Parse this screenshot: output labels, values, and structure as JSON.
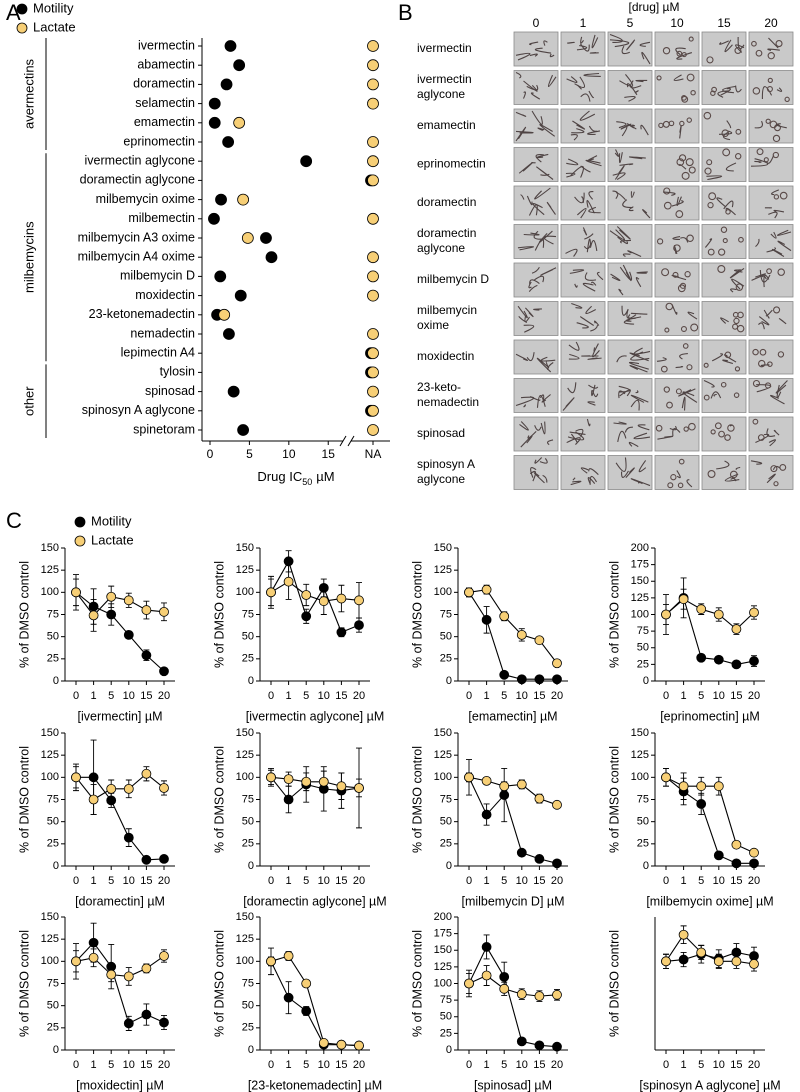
{
  "panel_labels": [
    "A",
    "B",
    "C"
  ],
  "image_grid": {
    "title": "[drug] µM",
    "concentrations": [
      "0",
      "1",
      "5",
      "10",
      "15",
      "20"
    ],
    "drugs": [
      [
        "ivermectin"
      ],
      [
        "ivermectin",
        "aglycone"
      ],
      [
        "emamectin"
      ],
      [
        "eprinomectin"
      ],
      [
        "doramectin"
      ],
      [
        "doramectin",
        "aglycone"
      ],
      [
        "milbemycin D"
      ],
      [
        "milbemycin",
        "oxime"
      ],
      [
        "moxidectin"
      ],
      [
        "23-keto-",
        "nemadectin"
      ],
      [
        "spinosad"
      ],
      [
        "spinosyn A",
        "aglycone"
      ]
    ]
  },
  "chart_data": [
    {
      "type": "dot",
      "categories": [
        "ivermectin",
        "abamectin",
        "doramectin",
        "selamectin",
        "emamectin",
        "eprinomectin",
        "ivermectin aglycone",
        "doramectin aglycone",
        "milbemycin oxime",
        "milbemectin",
        "milbemycin A3 oxime",
        "milbemycin A4 oxime",
        "milbemycin D",
        "moxidectin",
        "23-ketonemadectin",
        "nemadectin",
        "lepimectin A4",
        "tylosin",
        "spinosad",
        "spinosyn A aglycone",
        "spinetoram"
      ],
      "groups": [
        {
          "label": "avermectins",
          "from": 0,
          "to": 5
        },
        {
          "label": "milbemycins",
          "from": 6,
          "to": 16
        },
        {
          "label": "other",
          "from": 17,
          "to": 20
        }
      ],
      "xlabel": [
        "Drug IC",
        "50",
        "µM"
      ],
      "xlim": [
        0,
        17
      ],
      "xticks": [
        0,
        5,
        10,
        15,
        "NA"
      ],
      "axis_break": true,
      "legend": "top-left",
      "series": [
        {
          "name": "Motility",
          "color": "#000000",
          "values": [
            2.6,
            3.7,
            2.1,
            0.6,
            0.6,
            2.3,
            12.2,
            "NA",
            1.4,
            0.5,
            7.1,
            7.8,
            1.3,
            3.9,
            0.9,
            2.4,
            "NA",
            "NA",
            3.0,
            "NA",
            4.2
          ]
        },
        {
          "name": "Lactate",
          "color": "#f7cf76",
          "values": [
            "NA",
            "NA",
            "NA",
            "NA",
            3.7,
            "NA",
            "NA",
            "NA",
            4.2,
            "NA",
            4.8,
            "NA",
            "NA",
            "NA",
            1.8,
            "NA",
            "NA",
            "NA",
            "NA",
            "NA",
            "NA"
          ]
        }
      ]
    },
    {
      "type": "line",
      "xlabel": "[ivermectin] µM",
      "ylabel": "% of DMSO control",
      "legend": "top-left",
      "categories": [
        "0",
        "1",
        "5",
        "10",
        "15",
        "20"
      ],
      "ylim": [
        0,
        150
      ],
      "yticks": [
        0,
        25,
        50,
        75,
        100,
        125,
        150
      ],
      "series": [
        {
          "name": "Motility",
          "color": "#000000",
          "values": [
            100,
            84,
            75,
            52,
            29,
            11
          ],
          "errors": [
            20,
            20,
            12,
            4,
            6,
            2
          ]
        },
        {
          "name": "Lactate",
          "color": "#f7cf76",
          "values": [
            100,
            74,
            95,
            91,
            80,
            78
          ],
          "errors": [
            15,
            18,
            12,
            8,
            10,
            10
          ]
        }
      ]
    },
    {
      "type": "line",
      "xlabel": "[ivermectin aglycone] µM",
      "ylabel": "% of DMSO control",
      "categories": [
        "0",
        "1",
        "5",
        "10",
        "15",
        "20"
      ],
      "ylim": [
        0,
        150
      ],
      "yticks": [
        0,
        25,
        50,
        75,
        100,
        125,
        150
      ],
      "series": [
        {
          "color": "#000000",
          "values": [
            100,
            135,
            73,
            105,
            55,
            63
          ],
          "errors": [
            18,
            12,
            8,
            10,
            5,
            8
          ]
        },
        {
          "color": "#f7cf76",
          "values": [
            100,
            112,
            97,
            90,
            93,
            91
          ],
          "errors": [
            15,
            20,
            12,
            15,
            15,
            20
          ]
        }
      ]
    },
    {
      "type": "line",
      "xlabel": "[emamectin] µM",
      "ylabel": "% of DMSO control",
      "categories": [
        "0",
        "1",
        "5",
        "10",
        "15",
        "20"
      ],
      "ylim": [
        0,
        150
      ],
      "yticks": [
        0,
        25,
        50,
        75,
        100,
        125,
        150
      ],
      "series": [
        {
          "color": "#000000",
          "values": [
            100,
            69,
            7,
            2,
            2,
            2
          ],
          "errors": [
            5,
            15,
            2,
            1,
            1,
            1
          ]
        },
        {
          "color": "#f7cf76",
          "values": [
            100,
            103,
            73,
            52,
            46,
            20
          ],
          "errors": [
            5,
            5,
            5,
            7,
            3,
            3
          ]
        }
      ]
    },
    {
      "type": "line",
      "xlabel": "[eprinomectin] µM",
      "ylabel": "% of DMSO control",
      "categories": [
        "0",
        "1",
        "5",
        "10",
        "15",
        "20"
      ],
      "ylim": [
        0,
        200
      ],
      "yticks": [
        0,
        25,
        50,
        75,
        100,
        125,
        150,
        175,
        200
      ],
      "series": [
        {
          "color": "#000000",
          "values": [
            100,
            125,
            35,
            32,
            25,
            30
          ],
          "errors": [
            30,
            30,
            3,
            3,
            3,
            8
          ]
        },
        {
          "color": "#f7cf76",
          "values": [
            100,
            123,
            108,
            100,
            78,
            103
          ],
          "errors": [
            15,
            15,
            8,
            10,
            8,
            10
          ]
        }
      ]
    },
    {
      "type": "line",
      "xlabel": "[doramectin] µM",
      "ylabel": "% of DMSO control",
      "categories": [
        "0",
        "1",
        "5",
        "10",
        "15",
        "20"
      ],
      "ylim": [
        0,
        150
      ],
      "yticks": [
        0,
        25,
        50,
        75,
        100,
        125,
        150
      ],
      "series": [
        {
          "color": "#000000",
          "values": [
            100,
            100,
            74,
            32,
            7,
            8
          ],
          "errors": [
            15,
            42,
            8,
            10,
            1,
            1
          ]
        },
        {
          "color": "#f7cf76",
          "values": [
            100,
            75,
            87,
            87,
            104,
            88
          ],
          "errors": [
            12,
            17,
            10,
            10,
            8,
            8
          ]
        }
      ]
    },
    {
      "type": "line",
      "xlabel": "[doramectin aglycone] µM",
      "ylabel": "% of DMSO control",
      "categories": [
        "0",
        "1",
        "5",
        "10",
        "15",
        "20"
      ],
      "ylim": [
        0,
        150
      ],
      "yticks": [
        0,
        25,
        50,
        75,
        100,
        125,
        150
      ],
      "series": [
        {
          "color": "#000000",
          "values": [
            100,
            75,
            92,
            87,
            85,
            88
          ],
          "errors": [
            10,
            15,
            20,
            25,
            20,
            45
          ]
        },
        {
          "color": "#f7cf76",
          "values": [
            100,
            98,
            95,
            95,
            90,
            88
          ],
          "errors": [
            8,
            8,
            10,
            12,
            15,
            10
          ]
        }
      ]
    },
    {
      "type": "line",
      "xlabel": "[milbemycin D] µM",
      "ylabel": "% of DMSO control",
      "categories": [
        "0",
        "1",
        "5",
        "10",
        "15",
        "20"
      ],
      "ylim": [
        0,
        150
      ],
      "yticks": [
        0,
        25,
        50,
        75,
        100,
        125,
        150
      ],
      "series": [
        {
          "color": "#000000",
          "values": [
            100,
            58,
            80,
            15,
            8,
            3
          ],
          "errors": [
            20,
            12,
            30,
            2,
            2,
            1
          ]
        },
        {
          "color": "#f7cf76",
          "values": [
            100,
            96,
            90,
            92,
            76,
            69
          ],
          "errors": [
            5,
            3,
            5,
            5,
            5,
            3
          ]
        }
      ]
    },
    {
      "type": "line",
      "xlabel": "[milbemycin oxime] µM",
      "ylabel": "% of DMSO control",
      "categories": [
        "0",
        "1",
        "5",
        "10",
        "15",
        "20"
      ],
      "ylim": [
        0,
        150
      ],
      "yticks": [
        0,
        25,
        50,
        75,
        100,
        125,
        150
      ],
      "series": [
        {
          "color": "#000000",
          "values": [
            100,
            84,
            70,
            12,
            3,
            3
          ],
          "errors": [
            10,
            15,
            12,
            4,
            1,
            1
          ]
        },
        {
          "color": "#f7cf76",
          "values": [
            100,
            90,
            90,
            90,
            24,
            15
          ],
          "errors": [
            10,
            15,
            10,
            10,
            3,
            3
          ]
        }
      ]
    },
    {
      "type": "line",
      "xlabel": "[moxidectin] µM",
      "ylabel": "% of DMSO control",
      "categories": [
        "0",
        "1",
        "5",
        "10",
        "15",
        "20"
      ],
      "ylim": [
        0,
        150
      ],
      "yticks": [
        0,
        25,
        50,
        75,
        100,
        125,
        150
      ],
      "series": [
        {
          "color": "#000000",
          "values": [
            100,
            121,
            94,
            30,
            40,
            31
          ],
          "errors": [
            20,
            22,
            25,
            8,
            12,
            8
          ]
        },
        {
          "color": "#f7cf76",
          "values": [
            100,
            104,
            85,
            83,
            92,
            106
          ],
          "errors": [
            12,
            10,
            8,
            10,
            5,
            7
          ]
        }
      ]
    },
    {
      "type": "line",
      "xlabel": "[23-ketonemadectin] µM",
      "ylabel": "% of DMSO control",
      "categories": [
        "0",
        "1",
        "5",
        "10",
        "15",
        "20"
      ],
      "ylim": [
        0,
        150
      ],
      "yticks": [
        0,
        25,
        50,
        75,
        100,
        125,
        150
      ],
      "series": [
        {
          "color": "#000000",
          "values": [
            100,
            59,
            44,
            6,
            6,
            5
          ],
          "errors": [
            15,
            18,
            5,
            2,
            2,
            1
          ]
        },
        {
          "color": "#f7cf76",
          "values": [
            100,
            106,
            75,
            8,
            6,
            5
          ],
          "errors": [
            5,
            5,
            3,
            3,
            2,
            1
          ]
        }
      ]
    },
    {
      "type": "line",
      "xlabel": "[spinosad] µM",
      "ylabel": "% of DMSO control",
      "categories": [
        "0",
        "1",
        "5",
        "10",
        "15",
        "20"
      ],
      "ylim": [
        0,
        200
      ],
      "yticks": [
        0,
        25,
        50,
        75,
        100,
        125,
        150,
        175,
        200
      ],
      "series": [
        {
          "color": "#000000",
          "values": [
            100,
            155,
            110,
            13,
            7,
            5
          ],
          "errors": [
            20,
            18,
            22,
            2,
            1,
            1
          ]
        },
        {
          "color": "#f7cf76",
          "values": [
            100,
            112,
            92,
            84,
            81,
            83
          ],
          "errors": [
            15,
            15,
            10,
            8,
            8,
            8
          ]
        }
      ]
    },
    {
      "type": "line",
      "xlabel": "[spinosyn A aglycone] µM",
      "ylabel": "% of DMSO control",
      "categories": [
        "0",
        "1",
        "5",
        "10",
        "15",
        "20"
      ],
      "ylim": [
        0,
        150
      ],
      "yticks": [],
      "series": [
        {
          "color": "#000000",
          "values": [
            100,
            102,
            108,
            103,
            110,
            106
          ],
          "errors": [
            8,
            8,
            10,
            10,
            10,
            10
          ]
        },
        {
          "color": "#f7cf76",
          "values": [
            100,
            130,
            110,
            100,
            100,
            97
          ],
          "errors": [
            8,
            10,
            8,
            8,
            8,
            8
          ]
        }
      ]
    }
  ]
}
